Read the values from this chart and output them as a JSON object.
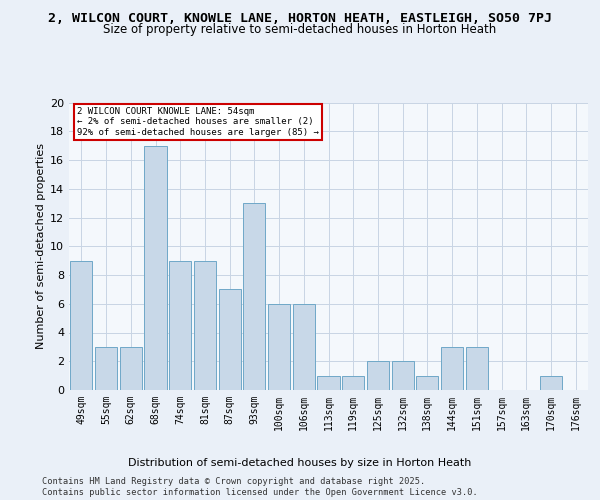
{
  "title_line1": "2, WILCON COURT, KNOWLE LANE, HORTON HEATH, EASTLEIGH, SO50 7PJ",
  "title_line2": "Size of property relative to semi-detached houses in Horton Heath",
  "xlabel": "Distribution of semi-detached houses by size in Horton Heath",
  "ylabel": "Number of semi-detached properties",
  "categories": [
    "49sqm",
    "55sqm",
    "62sqm",
    "68sqm",
    "74sqm",
    "81sqm",
    "87sqm",
    "93sqm",
    "100sqm",
    "106sqm",
    "113sqm",
    "119sqm",
    "125sqm",
    "132sqm",
    "138sqm",
    "144sqm",
    "151sqm",
    "157sqm",
    "163sqm",
    "170sqm",
    "176sqm"
  ],
  "values": [
    9,
    3,
    3,
    17,
    9,
    9,
    7,
    13,
    6,
    6,
    1,
    1,
    2,
    2,
    1,
    3,
    3,
    0,
    0,
    1,
    0
  ],
  "bar_color": "#c8d8e8",
  "bar_edge_color": "#6fa8c8",
  "annotation_text": "2 WILCON COURT KNOWLE LANE: 54sqm\n← 2% of semi-detached houses are smaller (2)\n92% of semi-detached houses are larger (85) →",
  "annotation_box_color": "#ffffff",
  "annotation_box_edge": "#cc0000",
  "ylim": [
    0,
    20
  ],
  "yticks": [
    0,
    2,
    4,
    6,
    8,
    10,
    12,
    14,
    16,
    18,
    20
  ],
  "footer": "Contains HM Land Registry data © Crown copyright and database right 2025.\nContains public sector information licensed under the Open Government Licence v3.0.",
  "bg_color": "#eaf0f8",
  "plot_bg_color": "#f4f8fc",
  "grid_color": "#c8d4e4",
  "title_fontsize": 9.5,
  "subtitle_fontsize": 8.5,
  "axis_label_fontsize": 8,
  "tick_fontsize": 7,
  "footer_fontsize": 6.2
}
